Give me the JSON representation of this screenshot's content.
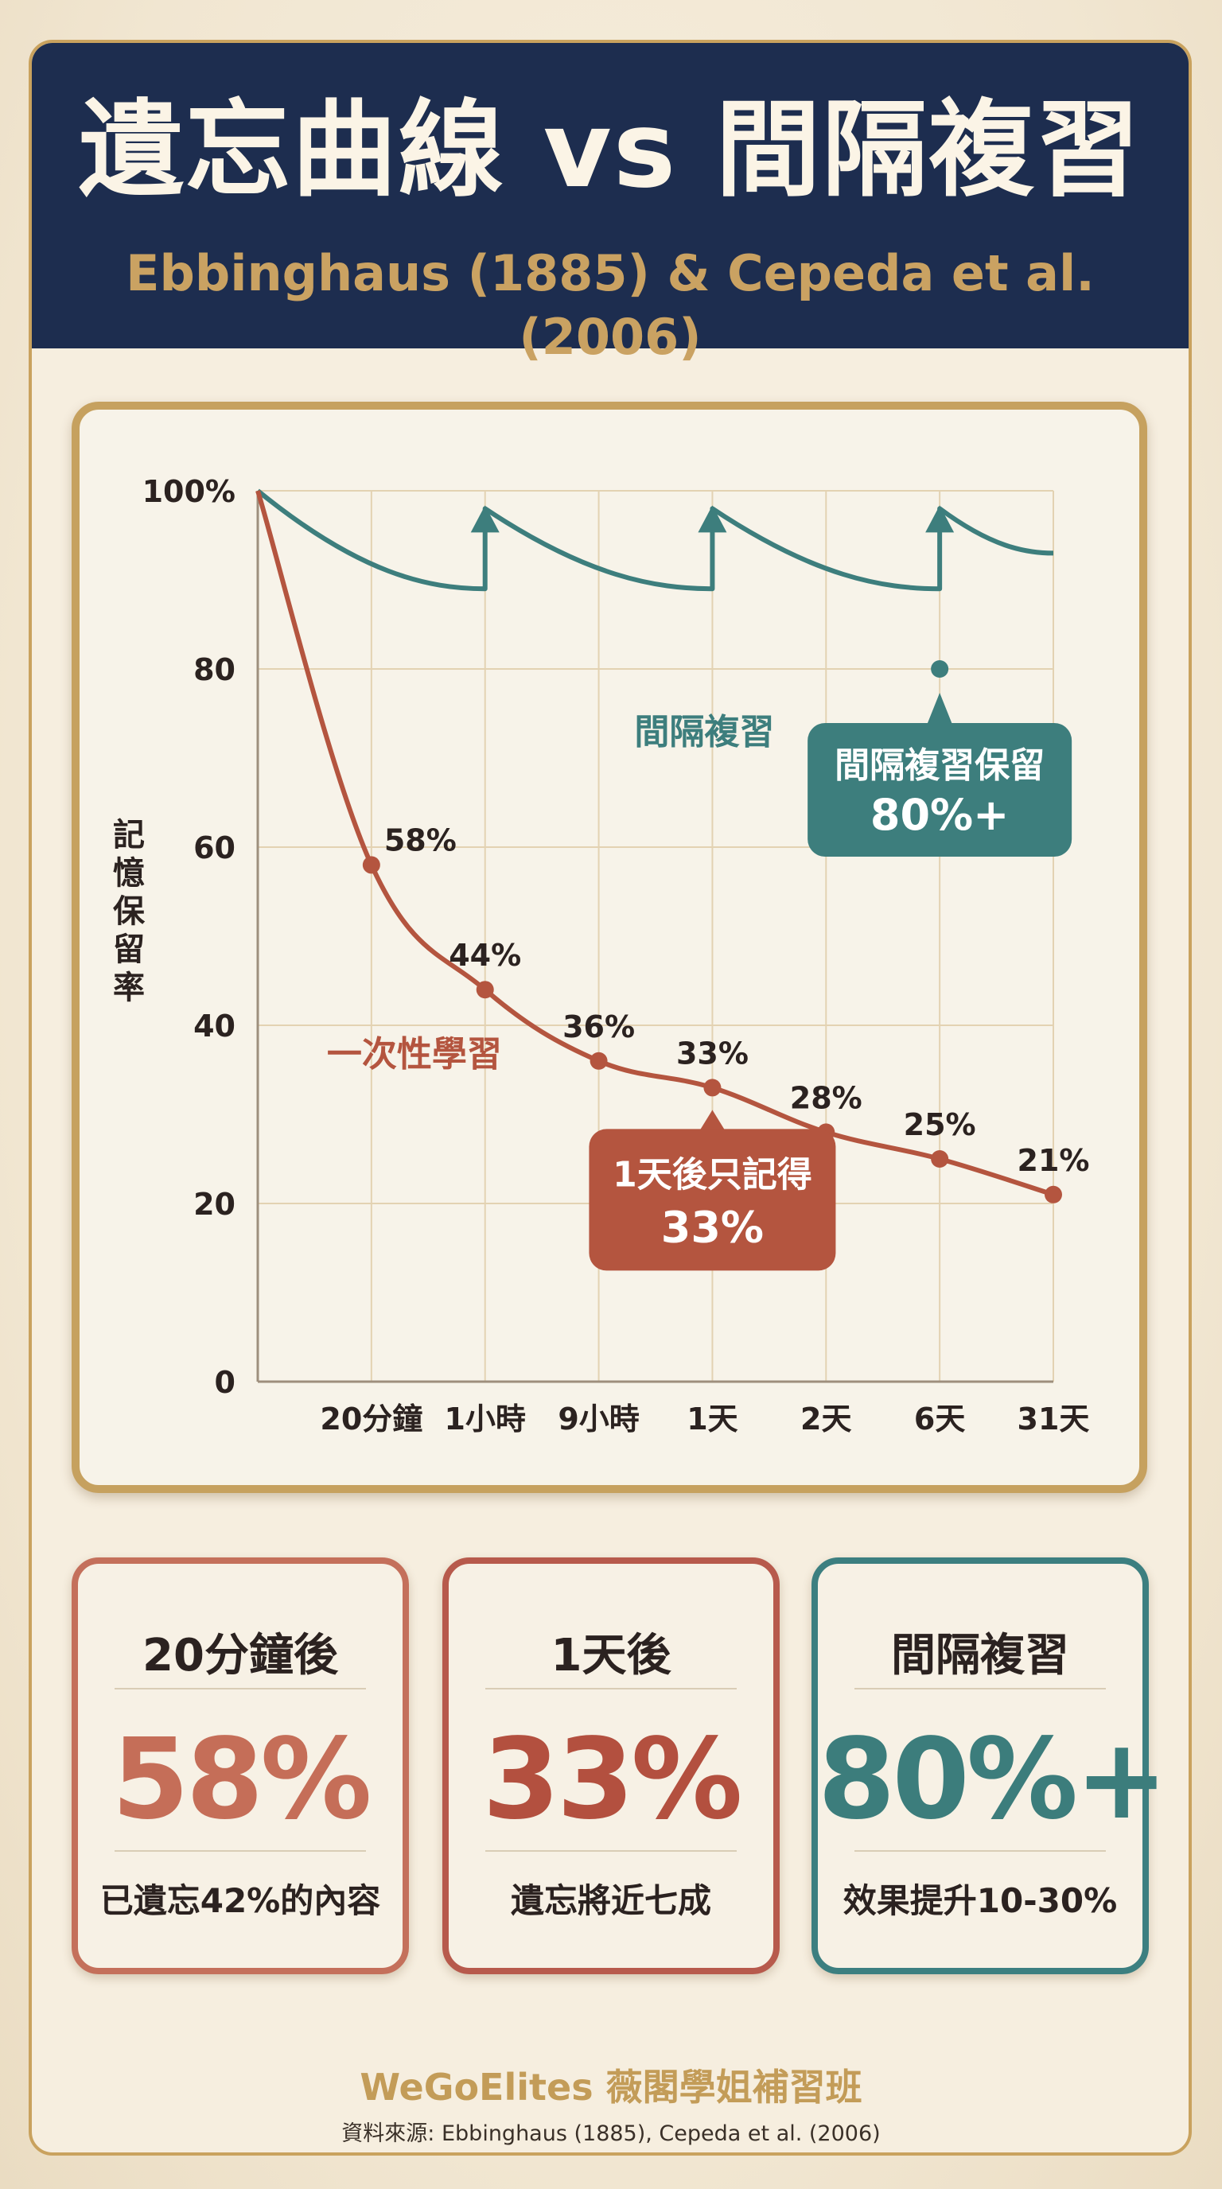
{
  "header": {
    "title": "遺忘曲線 vs 間隔複習",
    "subtitle": "Ebbinghaus (1885) & Cepeda et al. (2006)"
  },
  "chart_data": {
    "type": "line",
    "ylabel": "記憶保留率",
    "ylim": [
      0,
      100
    ],
    "y_ticks": [
      "0",
      "20",
      "40",
      "60",
      "80",
      "100%"
    ],
    "categories": [
      "20分鐘",
      "1小時",
      "9小時",
      "1天",
      "2天",
      "6天",
      "31天"
    ],
    "grid": true,
    "series": [
      {
        "name": "一次性學習",
        "color": "#b4553f",
        "points": [
          {
            "x": "start",
            "y": 100
          },
          {
            "x": "20分鐘",
            "y": 58,
            "label": "58%"
          },
          {
            "x": "1小時",
            "y": 44,
            "label": "44%"
          },
          {
            "x": "9小時",
            "y": 36,
            "label": "36%"
          },
          {
            "x": "1天",
            "y": 33,
            "label": "33%"
          },
          {
            "x": "2天",
            "y": 28,
            "label": "28%"
          },
          {
            "x": "6天",
            "y": 25,
            "label": "25%"
          },
          {
            "x": "31天",
            "y": 21,
            "label": "21%"
          }
        ]
      },
      {
        "name": "間隔複習",
        "color": "#3d7e7d",
        "points": [
          {
            "x": "start",
            "y": 100
          },
          {
            "x": "1小時",
            "y": 89
          },
          {
            "x": "1小時",
            "y": 98
          },
          {
            "x": "1天",
            "y": 89
          },
          {
            "x": "1天",
            "y": 98
          },
          {
            "x": "6天",
            "y": 89
          },
          {
            "x": "6天",
            "y": 98
          },
          {
            "x": "31天",
            "y": 93
          }
        ],
        "review_points": [
          "1小時",
          "1天",
          "6天"
        ]
      }
    ],
    "callouts": [
      {
        "x": "1天",
        "y": 33,
        "lines": [
          "1天後只記得",
          "33%"
        ],
        "color": "#b4553f"
      },
      {
        "x": "6天",
        "y": 80,
        "lines": [
          "間隔複習保留",
          "80%+"
        ],
        "color": "#3d7e7d"
      }
    ]
  },
  "stats": [
    {
      "heading": "20分鐘後",
      "value": "58%",
      "note": "已遺忘42%的內容",
      "color": "#c56e58"
    },
    {
      "heading": "1天後",
      "value": "33%",
      "note": "遺忘將近七成",
      "color": "#b3503f"
    },
    {
      "heading": "間隔複習",
      "value": "80%+",
      "note": "效果提升10-30%",
      "color": "#3c7d7c"
    }
  ],
  "footer": {
    "brand": "WeGoElites 薇閣學姐補習班",
    "source": "資料來源: Ebbinghaus (1885), Cepeda et al. (2006)"
  }
}
